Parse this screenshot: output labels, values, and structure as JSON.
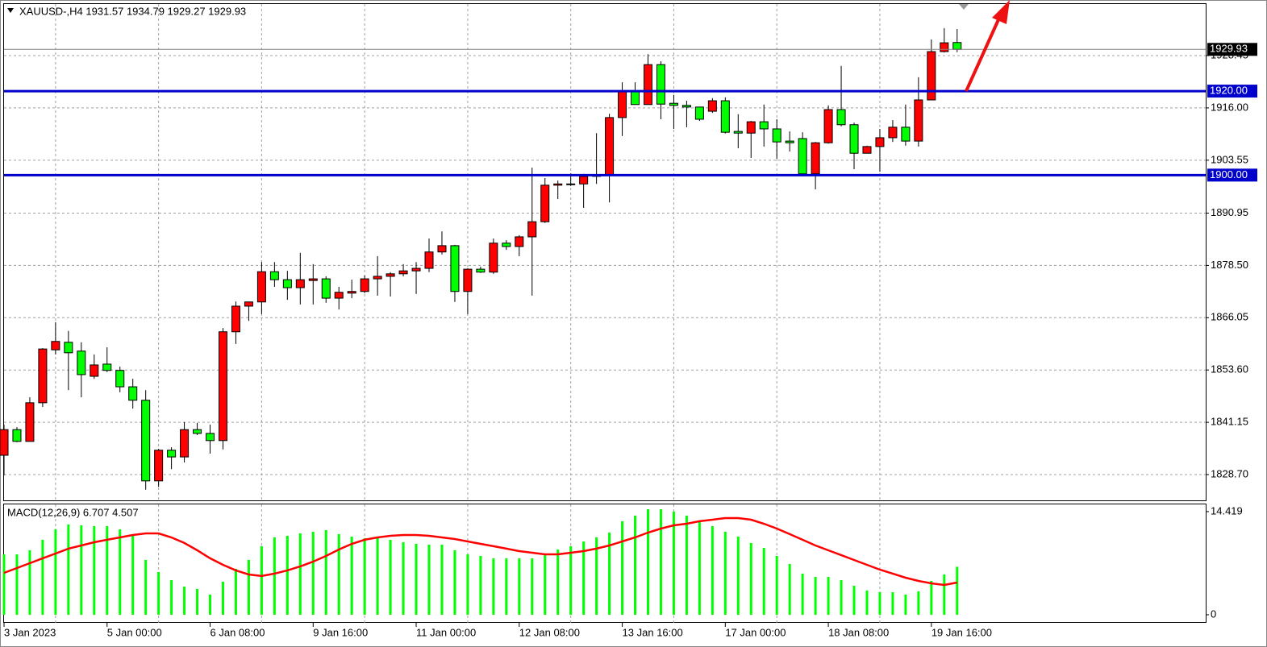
{
  "chart_data": [
    {
      "type": "candlestick",
      "title": "XAUUSD-,H4  1931.57 1934.79 1929.27 1929.93",
      "categories": [
        "3 Jan 2023",
        null,
        null,
        null,
        null,
        null,
        null,
        null,
        "5 Jan 00:00",
        null,
        null,
        null,
        null,
        null,
        null,
        null,
        "6 Jan 08:00",
        null,
        null,
        null,
        null,
        null,
        null,
        null,
        "9 Jan 16:00",
        null,
        null,
        null,
        null,
        null,
        null,
        null,
        "11 Jan 00:00",
        null,
        null,
        null,
        null,
        null,
        null,
        null,
        "12 Jan 08:00",
        null,
        null,
        null,
        null,
        null,
        null,
        null,
        "13 Jan 16:00",
        null,
        null,
        null,
        null,
        null,
        null,
        null,
        "17 Jan 00:00",
        null,
        null,
        null,
        null,
        null,
        null,
        null,
        "18 Jan 08:00",
        null,
        null,
        null,
        null,
        null,
        null,
        null,
        "19 Jan 16:00",
        null,
        null
      ],
      "open": [
        1833.3,
        1839.4,
        1836.6,
        1845.8,
        1858.4,
        1860.2,
        1858.1,
        1852.1,
        1855.0,
        1853.5,
        1849.6,
        1846.4,
        1827.2,
        1834.5,
        1832.9,
        1839.4,
        1838.5,
        1836.8,
        1862.7,
        1868.8,
        1869.8,
        1877.0,
        1875.1,
        1873.2,
        1874.9,
        1875.3,
        1870.7,
        1871.9,
        1872.3,
        1875.3,
        1875.9,
        1876.5,
        1877.2,
        1877.8,
        1881.7,
        1883.2,
        1872.3,
        1877.6,
        1876.9,
        1883.8,
        1883.0,
        1885.3,
        1888.9,
        1897.6,
        1897.8,
        1897.9,
        1899.7,
        1900.1,
        1913.7,
        1920.0,
        1916.8,
        1926.3,
        1917.1,
        1916.6,
        1916.2,
        1915.2,
        1917.7,
        1910.4,
        1910.0,
        1912.7,
        1911.0,
        1908.1,
        1908.7,
        1900.3,
        1907.7,
        1915.6,
        1912.0,
        1905.2,
        1906.8,
        1908.9,
        1911.4,
        1908.1,
        1917.9,
        1929.4,
        1931.57
      ],
      "high": [
        1840.6,
        1840.0,
        1847.1,
        1858.8,
        1865.0,
        1862.9,
        1860.2,
        1857.3,
        1859.0,
        1854.4,
        1851.5,
        1848.8,
        1834.8,
        1835.2,
        1841.2,
        1841.0,
        1840.6,
        1863.6,
        1869.9,
        1869.9,
        1879.3,
        1879.3,
        1877.2,
        1881.5,
        1878.8,
        1875.9,
        1873.4,
        1875.1,
        1876.1,
        1880.7,
        1876.9,
        1878.8,
        1879.3,
        1884.9,
        1886.6,
        1883.4,
        1877.8,
        1878.2,
        1884.9,
        1884.5,
        1885.7,
        1901.8,
        1899.3,
        1898.7,
        1900.4,
        1900.3,
        1910.0,
        1914.6,
        1922.1,
        1922.1,
        1928.8,
        1927.1,
        1919.1,
        1917.7,
        1916.2,
        1918.3,
        1918.5,
        1914.5,
        1912.9,
        1916.8,
        1913.3,
        1910.4,
        1910.2,
        1907.9,
        1916.6,
        1926.0,
        1912.5,
        1907.0,
        1911.0,
        1913.1,
        1916.8,
        1923.3,
        1932.3,
        1935.0,
        1934.79
      ],
      "low": [
        1828.5,
        1836.4,
        1836.6,
        1844.8,
        1857.3,
        1848.8,
        1847.1,
        1851.5,
        1853.1,
        1848.3,
        1844.4,
        1825.1,
        1825.8,
        1830.0,
        1831.6,
        1838.1,
        1833.7,
        1834.7,
        1859.8,
        1865.3,
        1866.9,
        1873.4,
        1870.3,
        1869.2,
        1869.2,
        1869.6,
        1868.0,
        1870.7,
        1871.9,
        1871.3,
        1871.1,
        1875.9,
        1871.7,
        1876.9,
        1881.1,
        1869.8,
        1866.9,
        1876.7,
        1876.5,
        1882.2,
        1880.7,
        1871.3,
        1888.6,
        1894.3,
        1897.4,
        1892.2,
        1897.9,
        1893.5,
        1909.3,
        1916.8,
        1916.8,
        1913.3,
        1911.0,
        1911.4,
        1912.9,
        1914.8,
        1909.9,
        1906.4,
        1904.1,
        1906.8,
        1903.9,
        1905.6,
        1899.7,
        1896.6,
        1907.5,
        1911.6,
        1901.4,
        1905.2,
        1900.8,
        1907.9,
        1907.0,
        1906.8,
        1917.9,
        1929.2,
        1929.27
      ],
      "close": [
        1839.4,
        1836.6,
        1845.8,
        1858.6,
        1860.4,
        1857.7,
        1852.5,
        1854.8,
        1853.5,
        1849.6,
        1846.4,
        1827.2,
        1834.5,
        1832.9,
        1839.4,
        1838.5,
        1836.8,
        1862.7,
        1868.8,
        1869.8,
        1877.0,
        1875.1,
        1873.2,
        1875.1,
        1875.3,
        1870.7,
        1872.1,
        1872.3,
        1875.3,
        1875.9,
        1876.5,
        1877.2,
        1877.8,
        1881.7,
        1883.2,
        1872.3,
        1877.6,
        1876.9,
        1883.8,
        1883.0,
        1885.3,
        1888.9,
        1897.6,
        1897.9,
        1897.9,
        1899.7,
        1900.1,
        1913.7,
        1920.0,
        1916.8,
        1926.3,
        1916.9,
        1916.6,
        1916.2,
        1913.3,
        1917.7,
        1910.2,
        1910.0,
        1912.7,
        1911.0,
        1907.9,
        1907.7,
        1900.3,
        1907.7,
        1915.6,
        1912.0,
        1905.2,
        1906.8,
        1908.9,
        1911.4,
        1908.1,
        1917.9,
        1929.4,
        1931.5,
        1929.93
      ],
      "up_color": "#ff0000",
      "down_color": "#00ff00",
      "ylim": [
        1822.37,
        1940.73
      ],
      "yticks": [
        {
          "value": 1828.7,
          "label": "1828.70"
        },
        1841.15,
        {
          "value": 1853.6,
          "label": "1853.60"
        },
        1866.05,
        {
          "value": 1878.5,
          "label": "1878.50"
        },
        1890.95,
        1903.55,
        {
          "value": 1916,
          "label": "1916.00"
        },
        1928.45
      ],
      "levels": [
        {
          "value": 1920,
          "label": "1920.00",
          "color": "#0000cc"
        },
        {
          "value": 1900,
          "label": "1900.00",
          "color": "#0000cc"
        }
      ],
      "grid": true
    },
    {
      "type": "macd",
      "title": "MACD(12,26,9) 6.707 4.507",
      "macd": [
        8.45,
        8.45,
        9.01,
        10.48,
        11.94,
        12.62,
        12.5,
        12.39,
        12.39,
        11.94,
        11.27,
        7.66,
        5.97,
        4.84,
        3.94,
        3.6,
        2.82,
        4.62,
        6.42,
        7.66,
        9.58,
        10.81,
        11.04,
        11.38,
        11.6,
        11.83,
        11.27,
        10.93,
        10.7,
        10.7,
        10.48,
        10.14,
        9.91,
        9.8,
        9.8,
        9.01,
        8.45,
        8.22,
        7.89,
        7.89,
        7.89,
        7.89,
        8.45,
        9.12,
        9.58,
        10.25,
        10.81,
        11.49,
        13.07,
        13.86,
        14.76,
        14.76,
        14.42,
        13.86,
        13.07,
        12.39,
        11.6,
        10.93,
        10.03,
        9.35,
        8.22,
        7.1,
        5.75,
        5.29,
        5.29,
        4.84,
        4.06,
        3.38,
        3.15,
        3.15,
        2.82,
        3.27,
        4.73,
        5.63,
        6.707
      ],
      "signal": [
        5.86,
        6.53,
        7.21,
        7.89,
        8.56,
        9.24,
        9.69,
        10.14,
        10.48,
        10.81,
        11.15,
        11.38,
        11.38,
        10.81,
        10.03,
        9.01,
        7.89,
        6.98,
        6.2,
        5.63,
        5.41,
        5.75,
        6.2,
        6.76,
        7.43,
        8.22,
        9.12,
        9.91,
        10.48,
        10.81,
        11.04,
        11.15,
        11.15,
        11.04,
        10.81,
        10.59,
        10.25,
        9.91,
        9.58,
        9.24,
        8.9,
        8.67,
        8.45,
        8.45,
        8.67,
        8.9,
        9.24,
        9.69,
        10.25,
        10.81,
        11.49,
        12.05,
        12.5,
        12.73,
        13.07,
        13.29,
        13.52,
        13.52,
        13.29,
        12.73,
        12.05,
        11.27,
        10.48,
        9.69,
        9.01,
        8.34,
        7.66,
        6.98,
        6.31,
        5.75,
        5.18,
        4.73,
        4.39,
        4.17,
        4.507
      ],
      "macd_color": "#00ff00",
      "signal_color": "#ff0000",
      "ylim": [
        -1.13,
        15.43
      ],
      "yticks": [
        0,
        14.419
      ]
    }
  ]
}
